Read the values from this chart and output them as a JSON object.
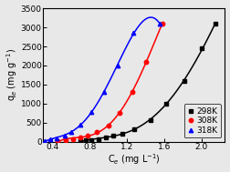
{
  "title": "",
  "xlabel": "C$_{e}$ (mg L$^{-1}$)",
  "ylabel": "q$_{e}$ (mg g$^{-1}$)",
  "xlim": [
    0.3,
    2.25
  ],
  "ylim": [
    0,
    3500
  ],
  "xticks": [
    0.4,
    0.8,
    1.2,
    1.6,
    2.0
  ],
  "yticks": [
    0,
    500,
    1000,
    1500,
    2000,
    2500,
    3000,
    3500
  ],
  "series": [
    {
      "label": "298K",
      "color": "#000000",
      "marker": "s",
      "x": [
        0.7,
        0.76,
        0.82,
        0.9,
        0.97,
        1.05,
        1.15,
        1.28,
        1.45,
        1.62,
        1.82,
        2.0,
        2.15
      ],
      "y": [
        20,
        35,
        55,
        80,
        110,
        155,
        220,
        340,
        580,
        1000,
        1600,
        2450,
        3100
      ]
    },
    {
      "label": "308K",
      "color": "#ff0000",
      "marker": "o",
      "x": [
        0.46,
        0.54,
        0.62,
        0.7,
        0.78,
        0.88,
        1.0,
        1.12,
        1.26,
        1.4,
        1.58
      ],
      "y": [
        25,
        50,
        80,
        120,
        175,
        260,
        430,
        750,
        1300,
        2100,
        3100
      ]
    },
    {
      "label": "318K",
      "color": "#0000ff",
      "marker": "^",
      "x": [
        0.32,
        0.38,
        0.45,
        0.53,
        0.6,
        0.7,
        0.82,
        0.95,
        1.1,
        1.27,
        1.55
      ],
      "y": [
        30,
        60,
        100,
        170,
        270,
        450,
        780,
        1300,
        2000,
        2850,
        3100
      ]
    }
  ],
  "background_color": "#e8e8e8",
  "legend_loc": "lower right",
  "legend_fontsize": 6.5
}
